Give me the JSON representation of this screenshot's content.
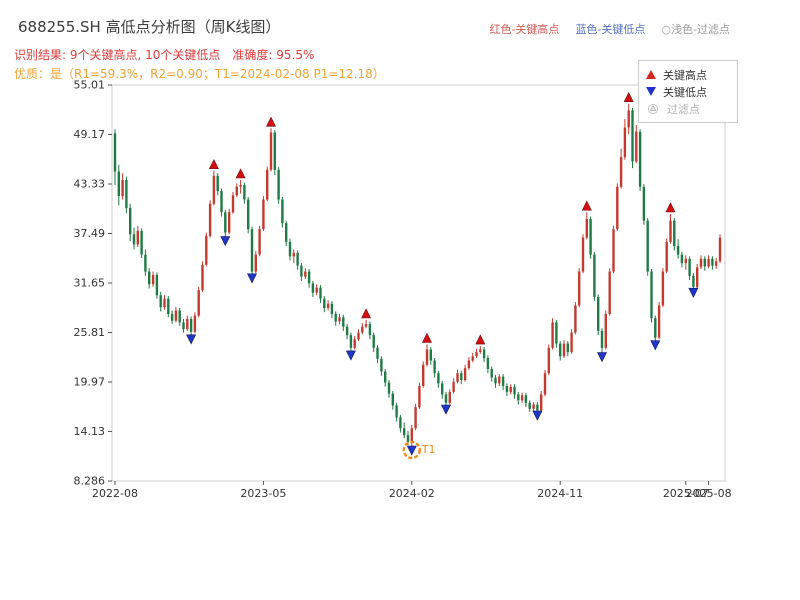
{
  "header": {
    "title": "688255.SH 高低点分析图（周K线图）",
    "color_legend": {
      "high": "红色-关键高点",
      "low": "蓝色-关键低点",
      "filtered": "○浅色-过滤点"
    },
    "result_line": "识别结果: 9个关键高点, 10个关键低点　准确度: 95.5%",
    "quality_line": "优质：是（R1=59.3%，R2=0.90；T1=2024-02-08 P1=12.18）"
  },
  "plot_legend": {
    "high": "关键高点",
    "low": "关键低点",
    "filtered": "过滤点"
  },
  "colors": {
    "candle_up": "#c43a2f",
    "candle_down": "#1e7b45",
    "key_high_marker": "#d40f0f",
    "key_low_marker": "#1f36c8",
    "filtered_marker": "#c9c9c9",
    "t1_circle": "#f08c1e",
    "result_text": "#e23c3c",
    "quality_text": "#f0a332",
    "axis_text": "#333333",
    "frame": "#cfcfcf"
  },
  "chart_data": {
    "type": "candlestick",
    "title": "688255.SH 高低点分析图（周K线图）",
    "x_unit": "week",
    "ymin": 8.286,
    "ymax": 55.01,
    "y_ticks": [
      {
        "v": 55.01,
        "label": "55.01"
      },
      {
        "v": 49.17,
        "label": "49.17"
      },
      {
        "v": 43.33,
        "label": "43.33"
      },
      {
        "v": 37.49,
        "label": "37.49"
      },
      {
        "v": 31.65,
        "label": "31.65"
      },
      {
        "v": 25.81,
        "label": "25.81"
      },
      {
        "v": 19.97,
        "label": "19.97"
      },
      {
        "v": 14.13,
        "label": "14.13"
      },
      {
        "v": 8.286,
        "label": "8.286"
      }
    ],
    "x_ticks": [
      {
        "i": 0,
        "label": "2022-08"
      },
      {
        "i": 39,
        "label": "2023-05"
      },
      {
        "i": 78,
        "label": "2024-02"
      },
      {
        "i": 117,
        "label": "2024-11"
      },
      {
        "i": 150,
        "label": "2025-07"
      },
      {
        "i": 156,
        "label": "2025-08"
      }
    ],
    "candles": [
      [
        49.3,
        49.8,
        43.2,
        44.8
      ],
      [
        44.8,
        45.6,
        40.8,
        41.9
      ],
      [
        41.9,
        44.6,
        41.5,
        43.8
      ],
      [
        43.8,
        44.2,
        39.9,
        40.5
      ],
      [
        40.5,
        41.0,
        36.6,
        37.4
      ],
      [
        37.4,
        38.2,
        35.6,
        36.2
      ],
      [
        36.2,
        38.4,
        35.9,
        37.8
      ],
      [
        37.8,
        38.1,
        34.6,
        35.0
      ],
      [
        35.0,
        35.6,
        32.5,
        33.0
      ],
      [
        33.0,
        33.4,
        31.0,
        31.5
      ],
      [
        31.5,
        33.0,
        31.2,
        32.6
      ],
      [
        32.6,
        32.9,
        29.8,
        30.2
      ],
      [
        30.2,
        30.6,
        28.3,
        28.8
      ],
      [
        28.8,
        30.2,
        28.5,
        29.8
      ],
      [
        29.8,
        30.1,
        27.6,
        28.0
      ],
      [
        28.0,
        28.4,
        26.8,
        27.2
      ],
      [
        27.2,
        28.8,
        27.0,
        28.4
      ],
      [
        28.4,
        28.7,
        26.6,
        27.0
      ],
      [
        27.0,
        27.4,
        25.8,
        26.2
      ],
      [
        26.2,
        27.8,
        26.0,
        27.4
      ],
      [
        27.4,
        27.7,
        25.3,
        25.9
      ],
      [
        25.9,
        28.2,
        25.7,
        27.8
      ],
      [
        27.8,
        31.2,
        27.6,
        30.8
      ],
      [
        30.8,
        34.2,
        30.6,
        33.8
      ],
      [
        33.8,
        37.6,
        33.6,
        37.2
      ],
      [
        37.2,
        41.4,
        37.0,
        41.0
      ],
      [
        41.0,
        44.9,
        40.8,
        44.3
      ],
      [
        44.3,
        44.6,
        42.0,
        42.5
      ],
      [
        42.5,
        42.8,
        39.5,
        40.0
      ],
      [
        40.0,
        40.3,
        36.9,
        37.6
      ],
      [
        37.6,
        40.4,
        37.4,
        40.0
      ],
      [
        40.0,
        42.4,
        39.8,
        42.0
      ],
      [
        42.0,
        43.4,
        41.8,
        43.0
      ],
      [
        43.0,
        43.8,
        42.2,
        43.2
      ],
      [
        43.2,
        43.5,
        41.0,
        41.5
      ],
      [
        41.5,
        41.8,
        37.5,
        38.0
      ],
      [
        38.0,
        38.3,
        32.5,
        33.0
      ],
      [
        33.0,
        35.4,
        32.8,
        35.0
      ],
      [
        35.0,
        38.4,
        34.8,
        38.0
      ],
      [
        38.0,
        41.9,
        37.8,
        41.5
      ],
      [
        41.5,
        45.4,
        41.3,
        45.0
      ],
      [
        45.0,
        49.9,
        44.8,
        49.4
      ],
      [
        49.4,
        49.7,
        44.4,
        45.0
      ],
      [
        45.0,
        45.3,
        41.0,
        41.5
      ],
      [
        41.5,
        41.8,
        38.2,
        38.7
      ],
      [
        38.7,
        39.0,
        36.0,
        36.5
      ],
      [
        36.5,
        36.9,
        34.3,
        34.8
      ],
      [
        34.8,
        35.6,
        34.0,
        35.2
      ],
      [
        35.2,
        35.5,
        33.2,
        33.7
      ],
      [
        33.7,
        34.0,
        31.9,
        32.4
      ],
      [
        32.4,
        33.4,
        32.1,
        33.0
      ],
      [
        33.0,
        33.3,
        31.1,
        31.6
      ],
      [
        31.6,
        31.9,
        30.0,
        30.5
      ],
      [
        30.5,
        31.5,
        30.2,
        31.1
      ],
      [
        31.1,
        31.4,
        29.3,
        29.8
      ],
      [
        29.8,
        30.1,
        28.2,
        28.7
      ],
      [
        28.7,
        29.6,
        28.4,
        29.2
      ],
      [
        29.2,
        29.5,
        27.5,
        28.0
      ],
      [
        28.0,
        28.3,
        26.6,
        27.1
      ],
      [
        27.1,
        28.0,
        26.8,
        27.6
      ],
      [
        27.6,
        27.9,
        26.0,
        26.5
      ],
      [
        26.5,
        26.8,
        25.0,
        25.5
      ],
      [
        25.5,
        25.8,
        23.4,
        24.0
      ],
      [
        24.0,
        25.4,
        23.8,
        25.0
      ],
      [
        25.0,
        26.2,
        24.8,
        25.8
      ],
      [
        25.8,
        26.9,
        25.6,
        26.5
      ],
      [
        26.5,
        27.3,
        26.3,
        26.8
      ],
      [
        26.8,
        27.1,
        25.0,
        25.5
      ],
      [
        25.5,
        25.8,
        23.5,
        24.0
      ],
      [
        24.0,
        24.3,
        22.2,
        22.7
      ],
      [
        22.7,
        23.0,
        20.7,
        21.2
      ],
      [
        21.2,
        21.5,
        19.4,
        19.9
      ],
      [
        19.9,
        20.2,
        18.1,
        18.6
      ],
      [
        18.6,
        18.9,
        16.7,
        17.2
      ],
      [
        17.2,
        17.5,
        15.3,
        15.8
      ],
      [
        15.8,
        16.1,
        14.0,
        14.5
      ],
      [
        14.5,
        15.2,
        13.3,
        13.7
      ],
      [
        13.7,
        14.2,
        12.5,
        12.9
      ],
      [
        12.9,
        14.9,
        12.18,
        14.5
      ],
      [
        14.5,
        17.4,
        14.3,
        17.0
      ],
      [
        17.0,
        19.9,
        16.8,
        19.5
      ],
      [
        19.5,
        22.4,
        19.3,
        22.0
      ],
      [
        22.0,
        24.4,
        21.8,
        23.8
      ],
      [
        23.8,
        24.1,
        22.0,
        22.5
      ],
      [
        22.5,
        22.8,
        20.5,
        21.0
      ],
      [
        21.0,
        21.3,
        19.3,
        19.8
      ],
      [
        19.8,
        20.1,
        18.0,
        18.5
      ],
      [
        18.5,
        18.8,
        17.0,
        17.5
      ],
      [
        17.5,
        19.1,
        17.3,
        18.8
      ],
      [
        18.8,
        20.4,
        18.6,
        20.0
      ],
      [
        20.0,
        21.4,
        19.8,
        21.0
      ],
      [
        21.0,
        21.3,
        19.7,
        20.2
      ],
      [
        20.2,
        22.0,
        20.0,
        21.6
      ],
      [
        21.6,
        22.9,
        21.4,
        22.5
      ],
      [
        22.5,
        23.4,
        22.3,
        23.0
      ],
      [
        23.0,
        23.9,
        22.8,
        23.5
      ],
      [
        23.5,
        24.2,
        23.3,
        23.8
      ],
      [
        23.8,
        24.1,
        22.3,
        22.8
      ],
      [
        22.8,
        23.1,
        21.0,
        21.5
      ],
      [
        21.5,
        21.8,
        20.0,
        20.5
      ],
      [
        20.5,
        20.8,
        19.3,
        19.8
      ],
      [
        19.8,
        20.9,
        19.5,
        20.6
      ],
      [
        20.6,
        20.9,
        19.0,
        19.5
      ],
      [
        19.5,
        19.8,
        18.3,
        18.8
      ],
      [
        18.8,
        19.7,
        18.5,
        19.4
      ],
      [
        19.4,
        19.7,
        18.0,
        18.5
      ],
      [
        18.5,
        18.8,
        17.3,
        17.8
      ],
      [
        17.8,
        18.7,
        17.5,
        18.4
      ],
      [
        18.4,
        18.7,
        17.0,
        17.5
      ],
      [
        17.5,
        17.8,
        16.4,
        16.8
      ],
      [
        16.8,
        17.6,
        16.5,
        17.3
      ],
      [
        17.3,
        17.6,
        16.3,
        16.6
      ],
      [
        16.6,
        18.9,
        16.4,
        18.5
      ],
      [
        18.5,
        21.4,
        18.3,
        21.0
      ],
      [
        21.0,
        24.4,
        20.8,
        24.0
      ],
      [
        24.0,
        27.5,
        23.8,
        27.0
      ],
      [
        27.0,
        27.3,
        24.0,
        24.5
      ],
      [
        24.5,
        24.8,
        22.5,
        23.0
      ],
      [
        23.0,
        24.9,
        22.8,
        24.5
      ],
      [
        24.5,
        24.8,
        23.0,
        23.5
      ],
      [
        23.5,
        26.2,
        23.3,
        25.8
      ],
      [
        25.8,
        29.4,
        25.6,
        29.0
      ],
      [
        29.0,
        33.4,
        28.8,
        33.0
      ],
      [
        33.0,
        37.4,
        32.8,
        37.0
      ],
      [
        37.0,
        40.0,
        36.8,
        39.2
      ],
      [
        39.2,
        39.5,
        34.5,
        35.0
      ],
      [
        35.0,
        35.3,
        29.5,
        30.0
      ],
      [
        30.0,
        30.3,
        25.5,
        26.0
      ],
      [
        26.0,
        26.3,
        23.2,
        24.0
      ],
      [
        24.0,
        28.4,
        23.8,
        28.0
      ],
      [
        28.0,
        33.4,
        27.8,
        33.0
      ],
      [
        33.0,
        38.4,
        32.8,
        38.0
      ],
      [
        38.0,
        43.4,
        37.8,
        43.0
      ],
      [
        43.0,
        47.5,
        42.8,
        46.5
      ],
      [
        46.5,
        51.0,
        46.2,
        50.0
      ],
      [
        50.0,
        52.8,
        49.2,
        52.0
      ],
      [
        52.0,
        52.3,
        45.2,
        46.0
      ],
      [
        46.0,
        50.3,
        45.8,
        49.5
      ],
      [
        49.5,
        49.8,
        42.5,
        43.0
      ],
      [
        43.0,
        43.3,
        38.5,
        39.0
      ],
      [
        39.0,
        39.3,
        32.5,
        33.0
      ],
      [
        33.0,
        33.3,
        27.0,
        27.5
      ],
      [
        27.5,
        27.8,
        24.6,
        25.2
      ],
      [
        25.2,
        29.4,
        25.0,
        29.0
      ],
      [
        29.0,
        33.4,
        28.8,
        33.0
      ],
      [
        33.0,
        36.9,
        32.8,
        36.5
      ],
      [
        36.5,
        39.8,
        36.3,
        39.0
      ],
      [
        39.0,
        39.3,
        35.5,
        36.0
      ],
      [
        36.0,
        36.8,
        34.5,
        35.0
      ],
      [
        35.0,
        35.3,
        33.5,
        34.0
      ],
      [
        34.0,
        34.9,
        33.2,
        34.5
      ],
      [
        34.5,
        34.8,
        32.0,
        32.5
      ],
      [
        32.5,
        32.8,
        30.8,
        31.2
      ],
      [
        31.2,
        33.9,
        31.0,
        33.5
      ],
      [
        33.5,
        34.9,
        33.3,
        34.5
      ],
      [
        34.5,
        34.8,
        33.1,
        33.6
      ],
      [
        33.6,
        34.9,
        33.4,
        34.5
      ],
      [
        34.5,
        34.8,
        33.2,
        33.7
      ],
      [
        33.7,
        34.6,
        33.3,
        34.2
      ],
      [
        34.2,
        37.4,
        34.0,
        37.0
      ]
    ],
    "key_highs": [
      {
        "i": 26,
        "price": 44.9
      },
      {
        "i": 33,
        "price": 43.8
      },
      {
        "i": 41,
        "price": 49.9
      },
      {
        "i": 66,
        "price": 27.3
      },
      {
        "i": 82,
        "price": 24.4
      },
      {
        "i": 96,
        "price": 24.2
      },
      {
        "i": 124,
        "price": 40.0
      },
      {
        "i": 135,
        "price": 52.8
      },
      {
        "i": 146,
        "price": 39.8
      }
    ],
    "key_lows": [
      {
        "i": 20,
        "price": 25.3
      },
      {
        "i": 29,
        "price": 36.9
      },
      {
        "i": 36,
        "price": 32.5
      },
      {
        "i": 62,
        "price": 23.4
      },
      {
        "i": 78,
        "price": 12.18
      },
      {
        "i": 87,
        "price": 17.0
      },
      {
        "i": 111,
        "price": 16.3
      },
      {
        "i": 128,
        "price": 23.2
      },
      {
        "i": 142,
        "price": 24.6
      },
      {
        "i": 152,
        "price": 30.8
      }
    ],
    "t1": {
      "i": 78,
      "price": 12.18,
      "label": "T1",
      "date": "2024-02-08"
    },
    "counts": {
      "key_highs": 9,
      "key_lows": 10,
      "accuracy": "95.5%"
    }
  }
}
